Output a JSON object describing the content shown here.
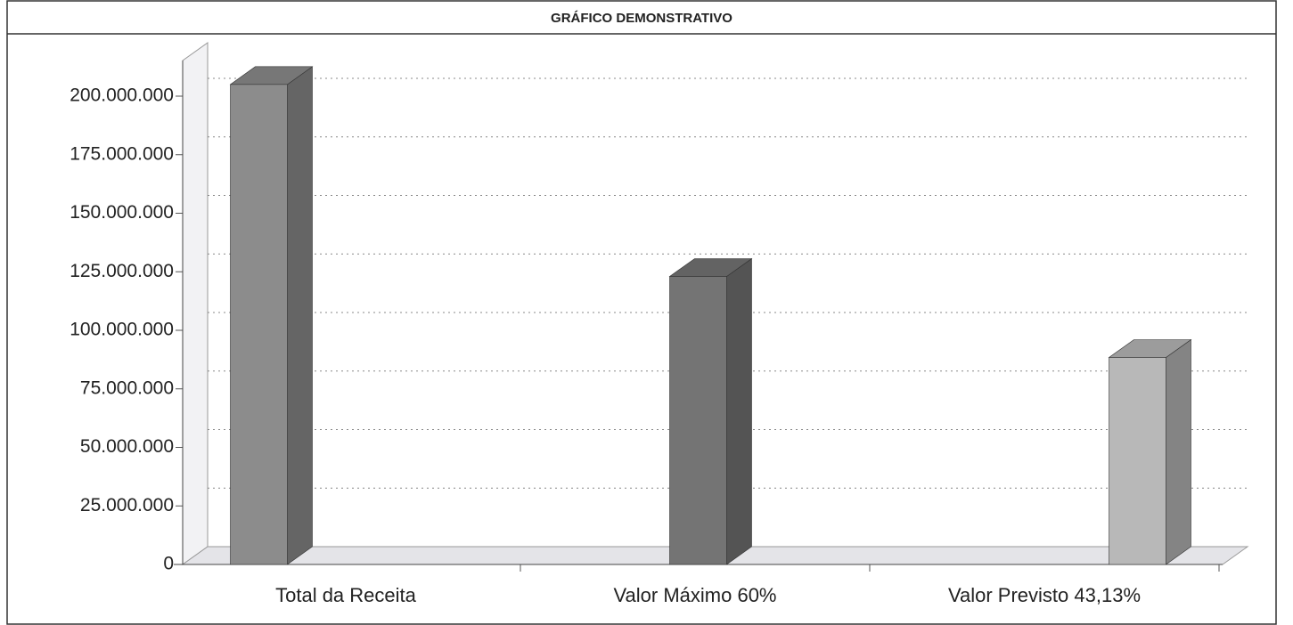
{
  "chart_data": {
    "type": "bar3d",
    "title": "GRÁFICO DEMONSTRATIVO",
    "categories": [
      "Total da Receita",
      "Valor Máximo 60%",
      "Valor Previsto 43,13%"
    ],
    "values": [
      205000000,
      123000000,
      88400000
    ],
    "colors": [
      "#8c8c8c",
      "#747474",
      "#b8b8b8"
    ],
    "ylim": [
      0,
      200000000
    ],
    "yticks": [
      0,
      {
        "value": 25000000,
        "label": "25.000.000"
      },
      {
        "value": 50000000,
        "label": "50.000.000"
      },
      {
        "value": 75000000,
        "label": "75.000.000"
      },
      {
        "value": 100000000,
        "label": "100.000.000"
      },
      {
        "value": 125000000,
        "label": "125.000.000"
      },
      {
        "value": 150000000,
        "label": "150.000.000"
      },
      {
        "value": 175000000,
        "label": "175.000.000"
      },
      {
        "value": 200000000,
        "label": "200.000.000"
      }
    ],
    "grid": true
  }
}
